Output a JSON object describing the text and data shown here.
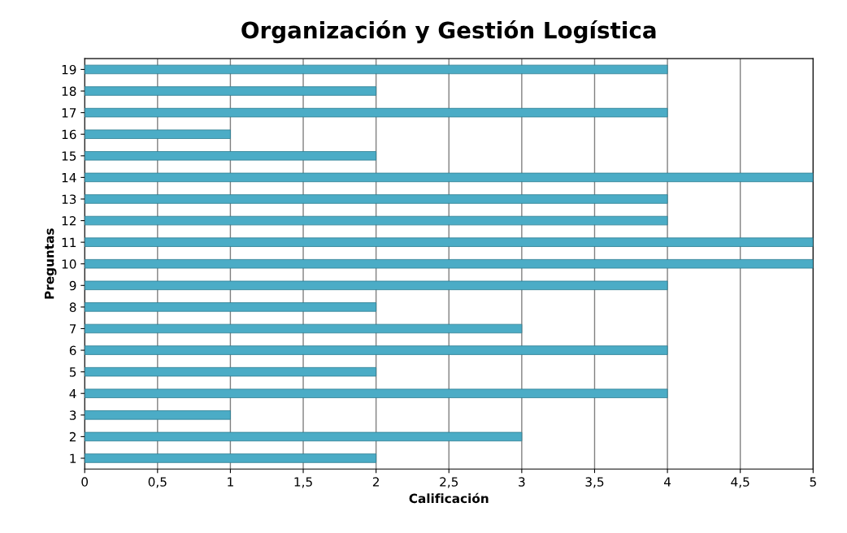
{
  "chart_data": {
    "type": "bar",
    "orientation": "horizontal",
    "title": "Organización y Gestión Logística",
    "xlabel": "Calificación",
    "ylabel": "Preguntas",
    "categories": [
      "19",
      "18",
      "17",
      "16",
      "15",
      "14",
      "13",
      "12",
      "11",
      "10",
      "9",
      "8",
      "7",
      "6",
      "5",
      "4",
      "3",
      "2",
      "1"
    ],
    "values": [
      4,
      2,
      4,
      1,
      2,
      5,
      4,
      4,
      5,
      5,
      4,
      2,
      3,
      4,
      2,
      4,
      1,
      3,
      2
    ],
    "color": "#4bacc6",
    "xlim": [
      0,
      5
    ],
    "xticks": [
      0,
      {
        "value": 0.5,
        "label": "0,5"
      },
      1,
      {
        "value": 1.5,
        "label": "1,5"
      },
      2,
      {
        "value": 2.5,
        "label": "2,5"
      },
      3,
      {
        "value": 3.5,
        "label": "3,5"
      },
      4,
      {
        "value": 4.5,
        "label": "4,5"
      },
      5
    ],
    "grid": "x",
    "legend": false
  }
}
